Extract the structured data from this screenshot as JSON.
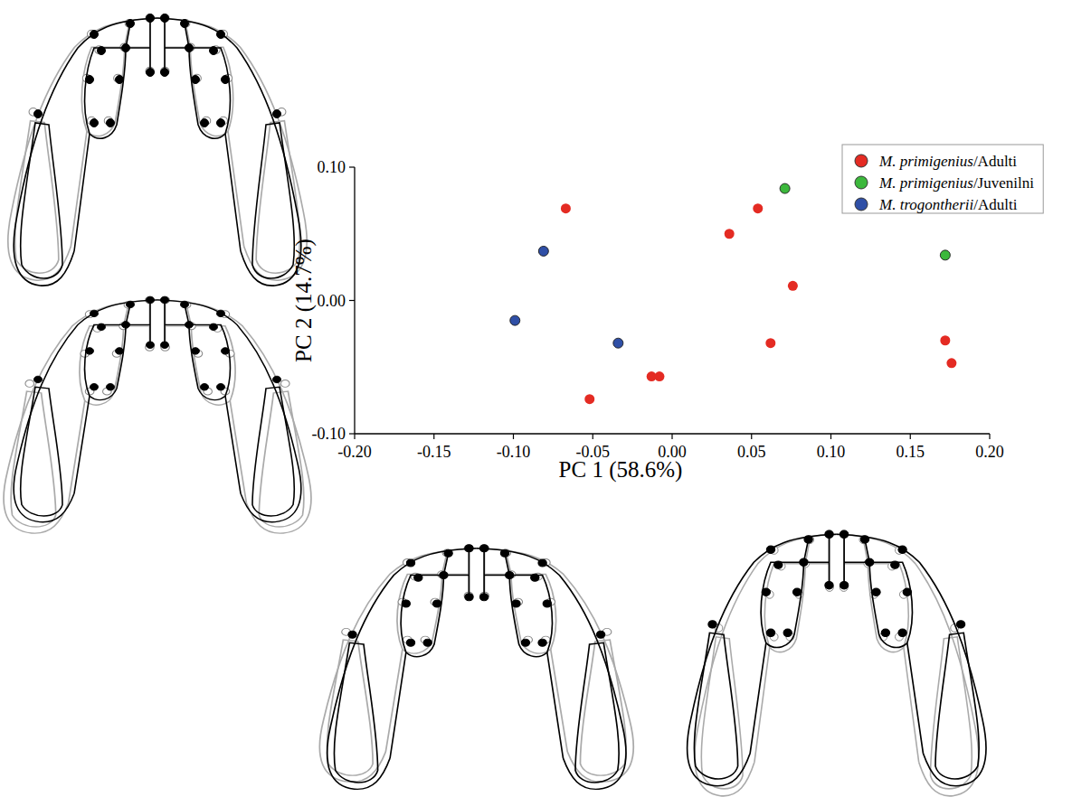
{
  "chart_data": {
    "type": "scatter",
    "xlabel": "PC 1 (58.6%)",
    "ylabel": "PC 2 (14.7%)",
    "xlim": [
      -0.2,
      0.2
    ],
    "ylim": [
      -0.1,
      0.1
    ],
    "xticks": [
      {
        "value": -0.2,
        "label": "-0.20"
      },
      {
        "value": -0.15,
        "label": "-0.15"
      },
      {
        "value": -0.1,
        "label": "-0.10"
      },
      {
        "value": -0.05,
        "label": "-0.05"
      },
      {
        "value": 0,
        "label": "0.00"
      },
      {
        "value": 0.05,
        "label": "0.05"
      },
      {
        "value": 0.1,
        "label": "0.10"
      },
      {
        "value": 0.15,
        "label": "0.15"
      },
      {
        "value": 0.2,
        "label": "0.20"
      }
    ],
    "yticks": [
      {
        "value": -0.1,
        "label": "-0.10"
      },
      {
        "value": 0,
        "label": "0.00"
      },
      {
        "value": 0.1,
        "label": "0.10"
      }
    ],
    "legend": "upper right",
    "grid": false,
    "marker": "circle",
    "series": [
      {
        "name": "M. primigenius/Adulti",
        "color": "#e42b23",
        "x": [
          -0.067,
          0.036,
          0.054,
          0.076,
          0.062,
          0.172,
          0.176,
          -0.052,
          -0.013,
          -0.008
        ],
        "values": [
          0.069,
          0.05,
          0.069,
          0.011,
          -0.032,
          -0.03,
          -0.047,
          -0.074,
          -0.057,
          -0.057
        ]
      },
      {
        "name": "M. primigenius/Juvenilni",
        "color": "#3cb83c",
        "x": [
          0.071,
          0.172
        ],
        "values": [
          0.084,
          0.034
        ]
      },
      {
        "name": "M. trogontherii/Adulti",
        "color": "#2f4fa6",
        "x": [
          -0.081,
          -0.099,
          -0.034
        ],
        "values": [
          0.037,
          -0.015,
          -0.032
        ]
      }
    ]
  }
}
